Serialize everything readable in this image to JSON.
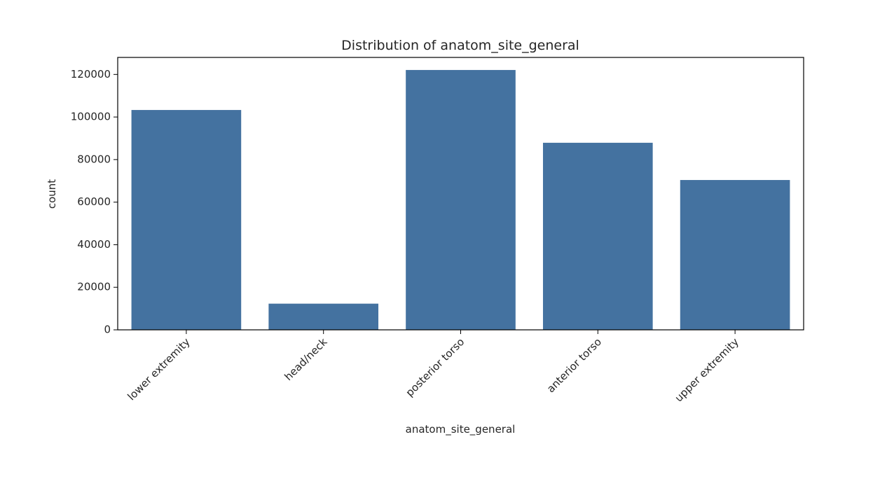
{
  "chart_data": {
    "type": "bar",
    "title": "Distribution of anatom_site_general",
    "xlabel": "anatom_site_general",
    "ylabel": "count",
    "categories": [
      "lower extremity",
      "head/neck",
      "posterior torso",
      "anterior torso",
      "upper extremity"
    ],
    "values": [
      103300,
      12300,
      122100,
      87900,
      70400
    ],
    "ylim": [
      0,
      128000
    ],
    "yticks": [
      0,
      20000,
      40000,
      60000,
      80000,
      100000,
      120000
    ],
    "ytick_labels": [
      "0",
      "20000",
      "40000",
      "60000",
      "80000",
      "100000",
      "120000"
    ],
    "grid": false,
    "bar_color": "#4472a0"
  }
}
